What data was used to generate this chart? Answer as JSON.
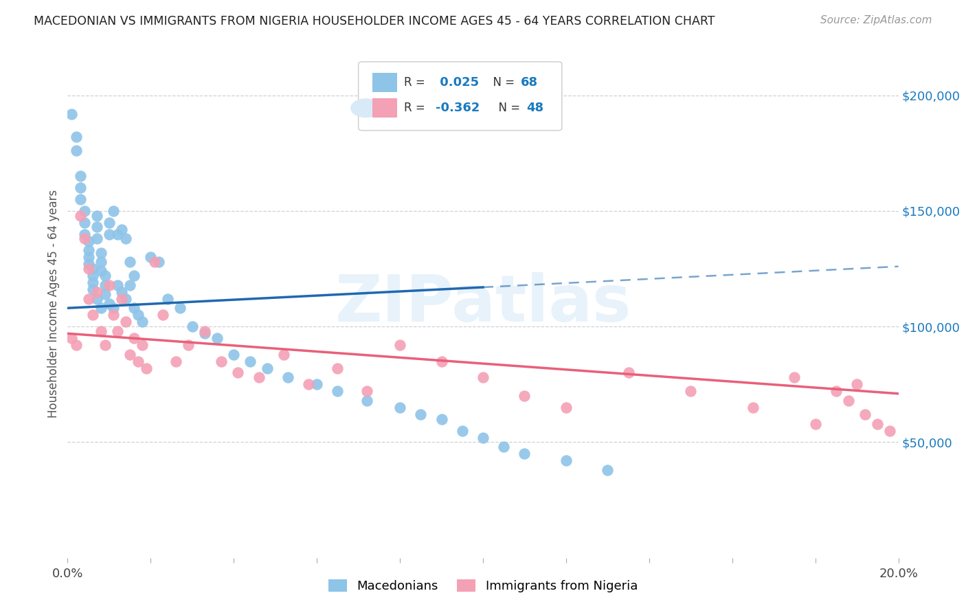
{
  "title": "MACEDONIAN VS IMMIGRANTS FROM NIGERIA HOUSEHOLDER INCOME AGES 45 - 64 YEARS CORRELATION CHART",
  "source": "Source: ZipAtlas.com",
  "ylabel": "Householder Income Ages 45 - 64 years",
  "xlim": [
    0.0,
    0.2
  ],
  "ylim": [
    0,
    220000
  ],
  "xticks": [
    0.0,
    0.02,
    0.04,
    0.06,
    0.08,
    0.1,
    0.12,
    0.14,
    0.16,
    0.18,
    0.2
  ],
  "xticklabels": [
    "0.0%",
    "",
    "",
    "",
    "",
    "",
    "",
    "",
    "",
    "",
    "20.0%"
  ],
  "ytick_labels_right": [
    "$50,000",
    "$100,000",
    "$150,000",
    "$200,000"
  ],
  "ytick_values_right": [
    50000,
    100000,
    150000,
    200000
  ],
  "color_macedonian": "#8ec4e8",
  "color_nigeria": "#f4a0b5",
  "color_line_macedonian": "#2068b0",
  "color_line_nigeria": "#e8607a",
  "color_r_value": "#1a7abf",
  "background_color": "#ffffff",
  "watermark_text": "ZIPatlas",
  "mac_trend_slope": 90000,
  "mac_trend_intercept": 108000,
  "nig_trend_slope": -130000,
  "nig_trend_intercept": 97000,
  "macedonian_x": [
    0.001,
    0.002,
    0.002,
    0.003,
    0.003,
    0.003,
    0.004,
    0.004,
    0.004,
    0.005,
    0.005,
    0.005,
    0.005,
    0.006,
    0.006,
    0.006,
    0.006,
    0.007,
    0.007,
    0.007,
    0.007,
    0.008,
    0.008,
    0.008,
    0.008,
    0.009,
    0.009,
    0.009,
    0.01,
    0.01,
    0.01,
    0.011,
    0.011,
    0.012,
    0.012,
    0.013,
    0.013,
    0.014,
    0.014,
    0.015,
    0.015,
    0.016,
    0.016,
    0.017,
    0.018,
    0.02,
    0.022,
    0.024,
    0.027,
    0.03,
    0.033,
    0.036,
    0.04,
    0.044,
    0.048,
    0.053,
    0.06,
    0.065,
    0.072,
    0.08,
    0.085,
    0.09,
    0.095,
    0.1,
    0.105,
    0.11,
    0.12,
    0.13
  ],
  "macedonian_y": [
    192000,
    182000,
    176000,
    165000,
    160000,
    155000,
    150000,
    145000,
    140000,
    137000,
    133000,
    130000,
    127000,
    125000,
    122000,
    119000,
    116000,
    148000,
    143000,
    138000,
    112000,
    132000,
    128000,
    124000,
    108000,
    122000,
    118000,
    114000,
    145000,
    140000,
    110000,
    150000,
    108000,
    140000,
    118000,
    142000,
    115000,
    138000,
    112000,
    128000,
    118000,
    122000,
    108000,
    105000,
    102000,
    130000,
    128000,
    112000,
    108000,
    100000,
    97000,
    95000,
    88000,
    85000,
    82000,
    78000,
    75000,
    72000,
    68000,
    65000,
    62000,
    60000,
    55000,
    52000,
    48000,
    45000,
    42000,
    38000
  ],
  "nigeria_x": [
    0.001,
    0.002,
    0.003,
    0.004,
    0.005,
    0.005,
    0.006,
    0.007,
    0.008,
    0.009,
    0.01,
    0.011,
    0.012,
    0.013,
    0.014,
    0.015,
    0.016,
    0.017,
    0.018,
    0.019,
    0.021,
    0.023,
    0.026,
    0.029,
    0.033,
    0.037,
    0.041,
    0.046,
    0.052,
    0.058,
    0.065,
    0.072,
    0.08,
    0.09,
    0.1,
    0.11,
    0.12,
    0.135,
    0.15,
    0.165,
    0.175,
    0.18,
    0.185,
    0.188,
    0.19,
    0.192,
    0.195,
    0.198
  ],
  "nigeria_y": [
    95000,
    92000,
    148000,
    138000,
    112000,
    125000,
    105000,
    115000,
    98000,
    92000,
    118000,
    105000,
    98000,
    112000,
    102000,
    88000,
    95000,
    85000,
    92000,
    82000,
    128000,
    105000,
    85000,
    92000,
    98000,
    85000,
    80000,
    78000,
    88000,
    75000,
    82000,
    72000,
    92000,
    85000,
    78000,
    70000,
    65000,
    80000,
    72000,
    65000,
    78000,
    58000,
    72000,
    68000,
    75000,
    62000,
    58000,
    55000
  ]
}
